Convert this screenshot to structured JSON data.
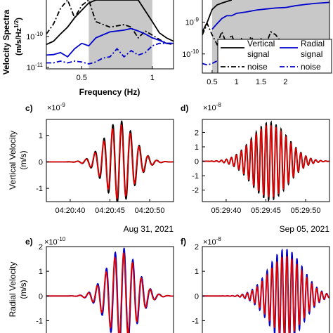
{
  "chart_data": [
    {
      "id": "top-left",
      "type": "line",
      "xlabel": "Frequency (Hz)",
      "ylabel": "Velocity Spectra (m/s/Hz^1/2)",
      "ylabel_parts": [
        "Velocity Spectra",
        "(m/s/Hz",
        "1/2",
        ")"
      ],
      "xlim": [
        0.25,
        1.15
      ],
      "ylim": [
        9e-12,
        1.5e-09
      ],
      "yscale": "log",
      "xticks": [
        0.5,
        1
      ],
      "xtick_labels": [
        "0.5",
        "1"
      ],
      "yticks": [
        1e-10,
        1e-11
      ],
      "ytick_labels": [
        [
          "10",
          "-10"
        ],
        [
          "10",
          "-11"
        ]
      ],
      "shaded_band": [
        0.55,
        1.0
      ],
      "series": [
        {
          "key": "vertical-signal",
          "color": "#000000",
          "dash": "solid",
          "x": [
            0.25,
            0.3,
            0.35,
            0.4,
            0.45,
            0.5,
            0.55,
            0.6,
            0.65,
            0.7,
            0.8,
            0.9,
            1.0,
            1.05,
            1.1,
            1.15
          ],
          "y": [
            5.5e-11,
            7e-11,
            1.2e-10,
            2e-10,
            4e-10,
            7e-10,
            1.2e-09,
            1.5e-09,
            1.5e-09,
            1.5e-09,
            1.5e-09,
            1.5e-09,
            3e-10,
            1.3e-10,
            9e-11,
            7e-11
          ]
        },
        {
          "key": "vertical-noise",
          "color": "#000000",
          "dash": "dashdot",
          "x": [
            0.25,
            0.3,
            0.35,
            0.4,
            0.45,
            0.5,
            0.55,
            0.6,
            0.7,
            0.8,
            0.85,
            0.9,
            0.95,
            1.0,
            1.05,
            1.1,
            1.15
          ],
          "y": [
            1.2e-10,
            2.5e-10,
            8e-10,
            1.5e-09,
            4e-10,
            1e-09,
            1.5e-09,
            3e-10,
            2e-10,
            2.4e-10,
            2e-10,
            9e-11,
            1.5e-10,
            1.1e-10,
            8e-11,
            6e-11,
            5.5e-11
          ]
        },
        {
          "key": "radial-signal",
          "color": "#0000cc",
          "dash": "solid",
          "x": [
            0.25,
            0.3,
            0.35,
            0.4,
            0.45,
            0.5,
            0.55,
            0.6,
            0.7,
            0.8,
            0.85,
            0.9,
            0.95,
            1.0,
            1.05,
            1.1,
            1.15
          ],
          "y": [
            2.5e-11,
            2.6e-11,
            3e-11,
            2.2e-11,
            4e-11,
            6e-11,
            5e-11,
            9e-11,
            1.4e-10,
            1.6e-10,
            1.8e-10,
            1.5e-10,
            1.2e-10,
            9e-11,
            7.5e-11,
            6e-11,
            6e-11
          ]
        },
        {
          "key": "radial-noise",
          "color": "#0000cc",
          "dash": "dashdot",
          "x": [
            0.25,
            0.3,
            0.35,
            0.4,
            0.45,
            0.5,
            0.55,
            0.6,
            0.65,
            0.7,
            0.75,
            0.8,
            0.85,
            0.9,
            0.95,
            1.0,
            1.05,
            1.1,
            1.15
          ],
          "y": [
            1.4e-11,
            1.4e-11,
            1.6e-11,
            1.4e-11,
            1.6e-11,
            1.5e-11,
            1.3e-11,
            1.5e-11,
            2e-11,
            2.2e-11,
            4e-11,
            2.2e-11,
            3.5e-11,
            2.5e-11,
            3e-11,
            5e-11,
            6e-11,
            6e-11,
            6e-11
          ]
        }
      ]
    },
    {
      "id": "top-right",
      "type": "line",
      "xlim": [
        0.3,
        2.9
      ],
      "ylim": [
        2.5e-11,
        5e-09
      ],
      "yscale": "log",
      "xticks": [
        0.5,
        1,
        1.5,
        2
      ],
      "xtick_labels": [
        "0.5",
        "1",
        "1.5",
        "2"
      ],
      "yticks": [
        1e-09,
        1e-10
      ],
      "ytick_labels": [
        [
          "10",
          "-9"
        ],
        [
          "10",
          "-10"
        ]
      ],
      "shaded_band": [
        0.5,
        2.9
      ],
      "legend": {
        "placement": "lower-right",
        "columns": [
          {
            "title": "Vertical",
            "entries": [
              {
                "series": "vertical-signal",
                "label": "signal"
              },
              {
                "series": "vertical-noise",
                "label": "noise"
              }
            ]
          },
          {
            "title": "Radial",
            "entries": [
              {
                "series": "radial-signal",
                "label": "signal"
              },
              {
                "series": "radial-noise",
                "label": "noise"
              }
            ]
          }
        ]
      },
      "series": [
        {
          "key": "vertical-signal",
          "color": "#000000",
          "dash": "solid",
          "x": [
            0.3,
            0.4,
            0.5,
            0.6,
            0.7,
            0.8,
            0.9
          ],
          "y": [
            5e-10,
            1e-09,
            2.5e-09,
            3.5e-09,
            4e-09,
            4.5e-09,
            5e-09
          ]
        },
        {
          "key": "radial-signal",
          "color": "#0000cc",
          "dash": "solid",
          "x": [
            0.5,
            0.6,
            0.7,
            0.8,
            0.9,
            1.0,
            1.2,
            1.4,
            1.6,
            1.8,
            2.0,
            2.2,
            2.4,
            2.6,
            2.8,
            2.9
          ],
          "y": [
            6e-10,
            9e-10,
            1.3e-09,
            1.6e-09,
            1.6e-09,
            1.9e-09,
            2.1e-09,
            2.4e-09,
            2.6e-09,
            2.8e-09,
            2.9e-09,
            3.3e-09,
            3.6e-09,
            3.9e-09,
            4.1e-09,
            4.2e-09
          ]
        },
        {
          "key": "vertical-noise",
          "color": "#000000",
          "dash": "dashdot",
          "x": [
            0.3,
            0.4,
            0.5,
            0.6,
            0.7,
            0.8,
            0.9,
            1.0,
            1.1,
            1.2,
            1.3,
            1.4,
            1.5,
            1.6,
            1.7,
            1.8,
            1.9,
            2.0,
            2.2,
            2.4,
            2.6,
            2.8,
            2.9
          ],
          "y": [
            4e-10,
            9e-10,
            4e-10,
            2e-10,
            5e-10,
            2e-10,
            4e-10,
            1.5e-10,
            3e-10,
            2e-10,
            3.5e-10,
            1.8e-10,
            3e-10,
            2e-10,
            5e-10,
            4e-10,
            2.5e-10,
            2e-10,
            2e-10,
            2.2e-10,
            2e-10,
            2e-10,
            2e-10
          ]
        },
        {
          "key": "radial-noise",
          "color": "#0000cc",
          "dash": "dashdot",
          "x": [
            0.3,
            0.4,
            0.5,
            0.6,
            0.7,
            0.8,
            0.9,
            1.0
          ],
          "y": [
            5e-11,
            4.5e-11,
            5e-11,
            6e-11,
            7e-11,
            9e-11,
            1.3e-10,
            1.6e-10
          ]
        }
      ]
    },
    {
      "id": "c",
      "type": "line",
      "panel_label": "c)",
      "multiplier": [
        "×10",
        "-9"
      ],
      "ylabel": "Vertical Velocity (m/s)",
      "ylabel_lines": [
        "Vertical Velocity",
        "(m/s)"
      ],
      "xlim": [
        37,
        53
      ],
      "ylim": [
        -1.5,
        1.6
      ],
      "yticks": [
        -1,
        0,
        1
      ],
      "xticks": [
        40,
        45,
        50
      ],
      "xtick_labels": [
        "04:20:40",
        "04:20:45",
        "04:20:50"
      ],
      "date_label": "Aug 31, 2021",
      "wave": {
        "center": 46.2,
        "freq": 0.9,
        "width": 2.6
      },
      "series": [
        {
          "key": "black-trace",
          "color": "#000000",
          "amp": 1.55,
          "phase": 0
        },
        {
          "key": "red-trace",
          "color": "#dd0000",
          "amp": 1.4,
          "phase": 0.25
        }
      ]
    },
    {
      "id": "d",
      "type": "line",
      "panel_label": "d)",
      "multiplier": [
        "×10",
        "-8"
      ],
      "xlim": [
        37,
        53
      ],
      "ylim": [
        -2.8,
        2.9
      ],
      "yticks": [
        -2,
        -1,
        0,
        1,
        2
      ],
      "xticks": [
        40,
        45,
        50
      ],
      "xtick_labels": [
        "05:29:40",
        "05:29:45",
        "05:29:50"
      ],
      "date_label": "Sep 05, 2021",
      "wave": {
        "center": 45.5,
        "freq": 1.6,
        "width": 3.2
      },
      "series": [
        {
          "key": "black-trace",
          "color": "#000000",
          "amp": 2.7,
          "phase": 0
        },
        {
          "key": "red-trace",
          "color": "#dd0000",
          "amp": 2.5,
          "phase": 0.2
        }
      ]
    },
    {
      "id": "e",
      "type": "line",
      "panel_label": "e)",
      "multiplier": [
        "×10",
        "-10"
      ],
      "ylabel": "Radial Velocity (m/s)",
      "ylabel_lines": [
        "Radial Velocity",
        "(m/s)"
      ],
      "xlim": [
        37,
        53
      ],
      "ylim": [
        -1.5,
        2
      ],
      "yticks": [
        -1,
        0,
        1,
        2
      ],
      "wave": {
        "center": 46.5,
        "freq": 0.9,
        "width": 2.6
      },
      "series": [
        {
          "key": "blue-trace",
          "color": "#0000cc",
          "amp": 1.95,
          "phase": 0
        },
        {
          "key": "red-trace",
          "color": "#dd0000",
          "amp": 1.75,
          "phase": 0.3
        }
      ]
    },
    {
      "id": "f",
      "type": "line",
      "panel_label": "f)",
      "multiplier": [
        "×10",
        "-8"
      ],
      "xlim": [
        37,
        53
      ],
      "ylim": [
        -1.5,
        2
      ],
      "yticks": [
        -1,
        0,
        1,
        2
      ],
      "wave": {
        "center": 47.5,
        "freq": 1.6,
        "width": 3.0
      },
      "series": [
        {
          "key": "blue-trace",
          "color": "#0000cc",
          "amp": 1.9,
          "phase": 0
        },
        {
          "key": "red-trace",
          "color": "#dd0000",
          "amp": 1.6,
          "phase": 0.25
        }
      ]
    }
  ]
}
